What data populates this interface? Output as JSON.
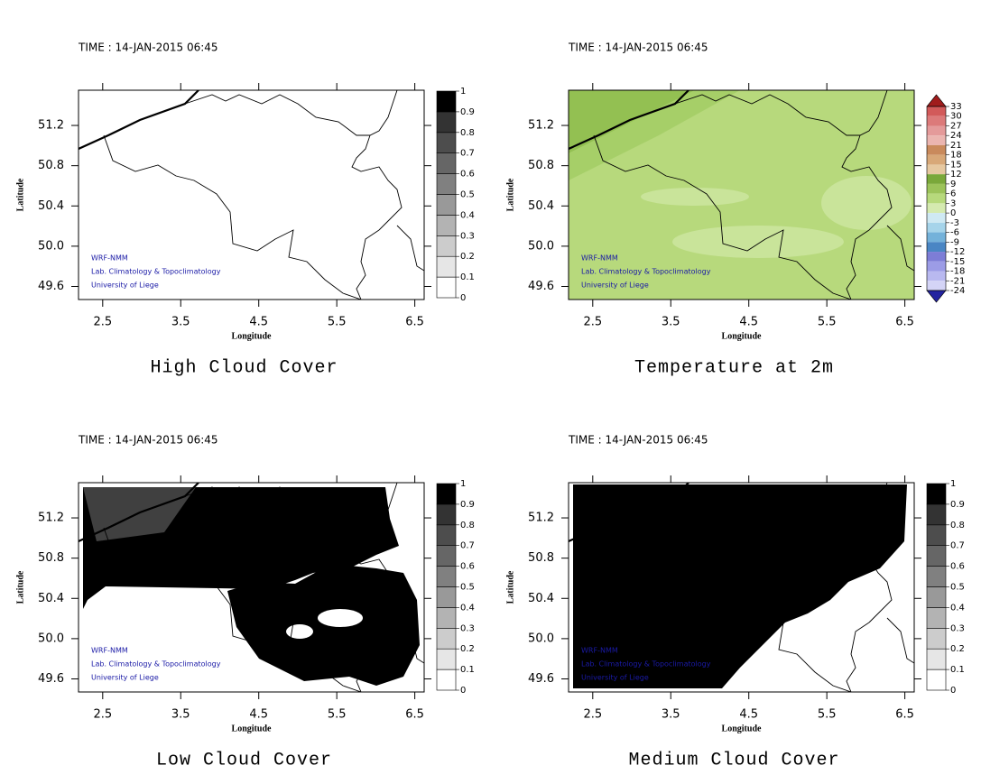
{
  "panels": [
    {
      "time": "TIME : 14-JAN-2015 06:45",
      "title": "High Cloud Cover",
      "x_label": "Longitude",
      "y_label": "Latitude",
      "xlim": [
        2.19,
        6.62
      ],
      "ylim": [
        49.47,
        51.55
      ],
      "xticks": [
        2.5,
        3.5,
        4.5,
        5.5,
        6.5
      ],
      "yticks": [
        49.6,
        {
          "value": 50,
          "label": "50.0"
        },
        50.4,
        50.8,
        51.2
      ],
      "credits": [
        "WRF-NMM",
        "Lab. Climatology & Topoclimatology",
        "University of Liege"
      ],
      "colorbar": {
        "ticks": [
          0,
          0.1,
          0.2,
          0.3,
          0.4,
          0.5,
          0.6,
          0.7,
          0.8,
          0.9,
          1
        ],
        "colors": [
          "#ffffff",
          "#e6e6e6",
          "#cccccc",
          "#b3b3b3",
          "#999999",
          "#808080",
          "#666666",
          "#4d4d4d",
          "#333333",
          "#000000"
        ]
      }
    },
    {
      "time": "TIME : 14-JAN-2015 06:45",
      "title": "Temperature at 2m",
      "x_label": "Longitude",
      "y_label": "Latitude",
      "xlim": [
        2.19,
        6.62
      ],
      "ylim": [
        49.47,
        51.55
      ],
      "xticks": [
        2.5,
        3.5,
        4.5,
        5.5,
        6.5
      ],
      "yticks": [
        49.6,
        {
          "value": 50,
          "label": "50.0"
        },
        50.4,
        50.8,
        51.2
      ],
      "credits": [
        "WRF-NMM",
        "Lab. Climatology & Topoclimatology",
        "University of Liege"
      ],
      "colorbar": {
        "ticks": [
          33,
          30,
          27,
          24,
          21,
          18,
          15,
          12,
          9,
          6,
          3,
          0,
          -3,
          -6,
          -9,
          -12,
          -15,
          -18,
          -21,
          -24
        ],
        "colors": [
          "#d25a5a",
          "#dc7a7a",
          "#e49a9a",
          "#ebb5b0",
          "#c98a5c",
          "#d8a878",
          "#e6c8a0",
          "#7aa83a",
          "#9cc35a",
          "#b7d97c",
          "#d5eab0",
          "#cfe9f3",
          "#a6d4ea",
          "#74b2da",
          "#4a86c4",
          "#7d7dd6",
          "#9c9ce6",
          "#b9b9f0",
          "#d4d4f6"
        ],
        "over_color": "#a01c1c",
        "under_color": "#2323a0"
      }
    },
    {
      "time": "TIME : 14-JAN-2015 06:45",
      "title": "Low Cloud Cover",
      "x_label": "Longitude",
      "y_label": "Latitude",
      "xlim": [
        2.19,
        6.62
      ],
      "ylim": [
        49.47,
        51.55
      ],
      "xticks": [
        2.5,
        3.5,
        4.5,
        5.5,
        6.5
      ],
      "yticks": [
        49.6,
        {
          "value": 50,
          "label": "50.0"
        },
        50.4,
        50.8,
        51.2
      ],
      "credits": [
        "WRF-NMM",
        "Lab. Climatology & Topoclimatology",
        "University of Liege"
      ],
      "colorbar": {
        "ticks": [
          0,
          0.1,
          0.2,
          0.3,
          0.4,
          0.5,
          0.6,
          0.7,
          0.8,
          0.9,
          1
        ],
        "colors": [
          "#ffffff",
          "#e6e6e6",
          "#cccccc",
          "#b3b3b3",
          "#999999",
          "#808080",
          "#666666",
          "#4d4d4d",
          "#333333",
          "#000000"
        ]
      }
    },
    {
      "time": "TIME : 14-JAN-2015 06:45",
      "title": "Medium Cloud Cover",
      "x_label": "Longitude",
      "y_label": "Latitude",
      "xlim": [
        2.19,
        6.62
      ],
      "ylim": [
        49.47,
        51.55
      ],
      "xticks": [
        2.5,
        3.5,
        4.5,
        5.5,
        6.5
      ],
      "yticks": [
        49.6,
        {
          "value": 50,
          "label": "50.0"
        },
        50.4,
        50.8,
        51.2
      ],
      "credits": [
        "WRF-NMM",
        "Lab. Climatology & Topoclimatology",
        "University of Liege"
      ],
      "colorbar": {
        "ticks": [
          0,
          0.1,
          0.2,
          0.3,
          0.4,
          0.5,
          0.6,
          0.7,
          0.8,
          0.9,
          1
        ],
        "colors": [
          "#ffffff",
          "#e6e6e6",
          "#cccccc",
          "#b3b3b3",
          "#999999",
          "#808080",
          "#666666",
          "#4d4d4d",
          "#333333",
          "#000000"
        ]
      }
    }
  ]
}
